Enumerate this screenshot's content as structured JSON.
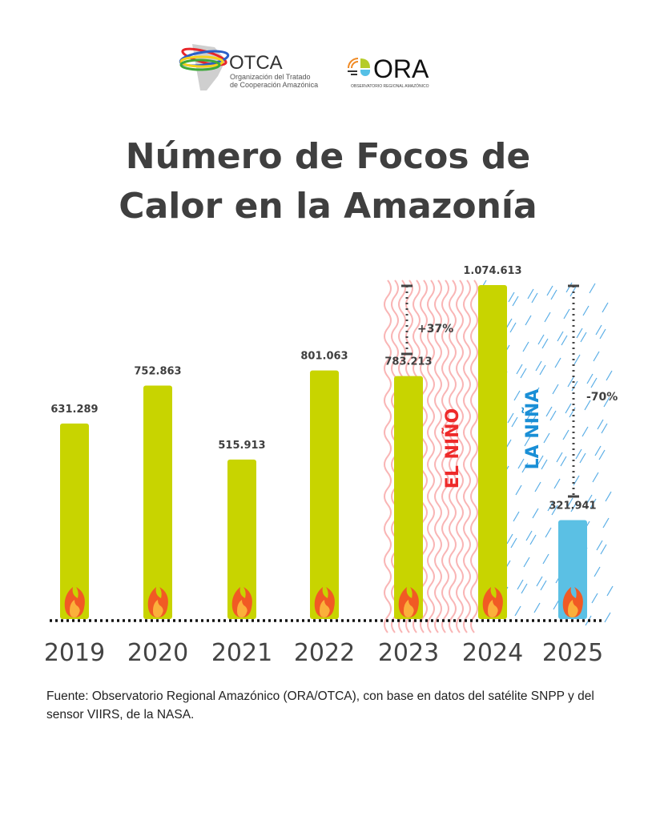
{
  "logos": {
    "otca": {
      "name": "OTCA",
      "subtitle_1": "Organización del Tratado",
      "subtitle_2": "de Cooperación Amazónica"
    },
    "ora": {
      "name": "ORA",
      "subtitle": "OBSERVATORIO REGIONAL AMAZÓNICO"
    }
  },
  "title_line1": "Número de Focos de",
  "title_line2": "Calor en la Amazonía",
  "source": "Fuente: Observatorio Regional Amazónico (ORA/OTCA), con base en datos del satélite SNPP y del sensor VIIRS, de la NASA.",
  "colors": {
    "bar": "#c8d400",
    "bar_2025": "#5bc0e4",
    "el_nino": "#ee2a2a",
    "la_nina": "#1a8fd6",
    "text": "#3f3f3f"
  },
  "chart_data": {
    "type": "bar",
    "categories": [
      "2019",
      "2020",
      "2021",
      "2022",
      "2023",
      "2024",
      "2025"
    ],
    "values": [
      631289,
      752863,
      515913,
      801063,
      783213,
      1074613,
      321941
    ],
    "data_labels": [
      "631.289",
      "752.863",
      "515.913",
      "801.063",
      "783.213",
      "1.074.613",
      "321.941"
    ],
    "title": "Número de Focos de Calor en la Amazonía",
    "xlabel": "",
    "ylabel": "",
    "ylim": [
      0,
      1074613
    ],
    "grid": false,
    "icon_per_bar": "fire-icon",
    "annotations": [
      {
        "text": "+37%",
        "from": "2023",
        "to": "2024"
      },
      {
        "text": "-70%",
        "from": "2024",
        "to": "2025"
      },
      {
        "text": "EL NIÑO",
        "span": [
          "2023",
          "2024"
        ],
        "color": "#ee2a2a"
      },
      {
        "text": "LA NIÑA",
        "span": [
          "2024",
          "2025"
        ],
        "color": "#1a8fd6"
      }
    ]
  }
}
